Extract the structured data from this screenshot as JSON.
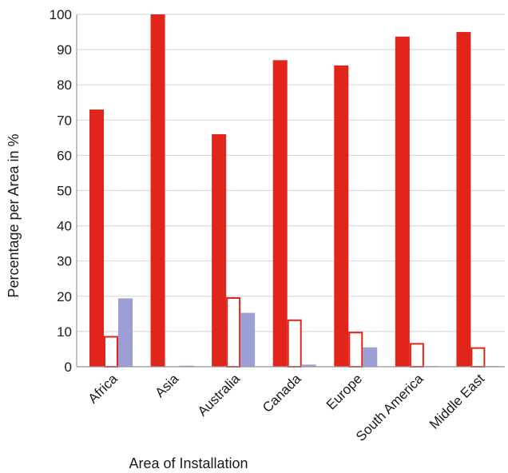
{
  "chart_data": {
    "type": "bar",
    "title": "",
    "xlabel": "Area of Installation",
    "ylabel": "Percentage per Area in %",
    "categories": [
      "Africa",
      "Asia",
      "Australia",
      "Canada",
      "Europe",
      "South America",
      "Middle East"
    ],
    "ylim": [
      0,
      100
    ],
    "yticks": [
      0,
      10,
      20,
      30,
      40,
      50,
      60,
      70,
      80,
      90,
      100
    ],
    "grid": true,
    "legend": "none",
    "series": [
      {
        "values": [
          73,
          100,
          66,
          87,
          85.5,
          93.7,
          95
        ],
        "color": "#e1251b",
        "style": "filled"
      },
      {
        "values": [
          8.5,
          0,
          19.5,
          13.2,
          9.7,
          6.5,
          5.3
        ],
        "color": "#e1251b",
        "style": "outline"
      },
      {
        "values": [
          19.4,
          0.3,
          15.3,
          0.6,
          5.5,
          0.2,
          0.2
        ],
        "color": "#9b9fd4",
        "style": "filled"
      }
    ]
  }
}
